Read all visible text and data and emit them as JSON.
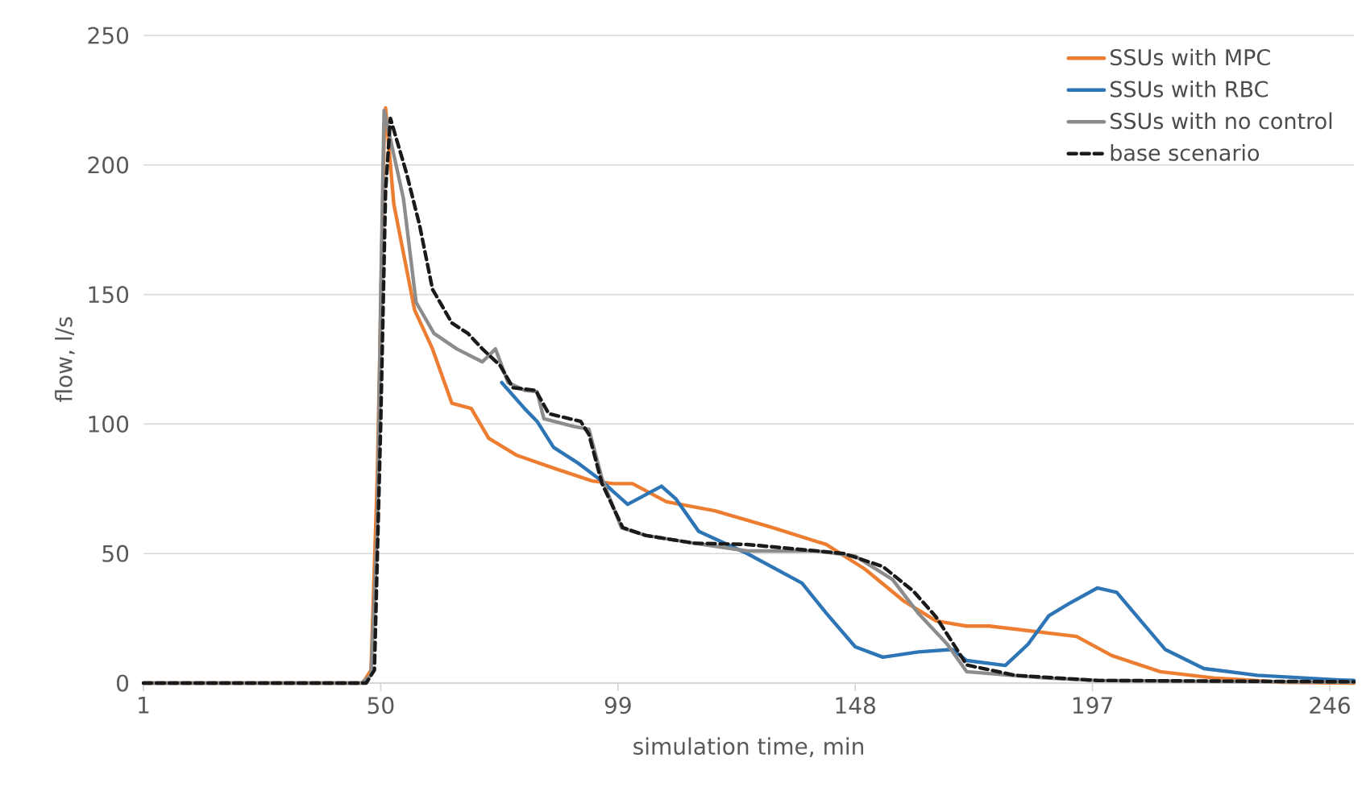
{
  "chart_data": {
    "type": "line",
    "xlabel": "simulation time, min",
    "ylabel": "flow, l/s",
    "xlim": [
      1,
      251
    ],
    "ylim": [
      0,
      250
    ],
    "xticks": [
      1,
      50,
      99,
      148,
      197,
      246
    ],
    "yticks": [
      0,
      50,
      100,
      150,
      200,
      250
    ],
    "grid": "y",
    "legend": "top right",
    "marker": "none",
    "series": [
      {
        "name": "SSUs with MPC",
        "color": "#ed7d31",
        "line_style": "solid",
        "x": [
          1,
          46.3,
          48,
          49.3,
          50.7,
          51,
          52.7,
          57,
          60.7,
          64.7,
          68.7,
          72.3,
          78,
          85.7,
          93.7,
          98,
          102,
          109,
          119,
          131,
          142,
          150,
          158,
          164.7,
          171,
          175.7,
          193.7,
          201,
          211,
          222,
          236,
          251
        ],
        "values": [
          0,
          0,
          5,
          80,
          210,
          222,
          185,
          144,
          129,
          108,
          106,
          94.5,
          88,
          83,
          78,
          77,
          77,
          70,
          66.5,
          60,
          53.5,
          44,
          31.7,
          24,
          22,
          22,
          18,
          10.6,
          4.4,
          2,
          0.3,
          0
        ]
      },
      {
        "name": "SSUs with RBC",
        "color": "#2e75b6",
        "line_style": "solid",
        "x": [
          75,
          79.7,
          82.3,
          85.7,
          91,
          95.7,
          98,
          101,
          108,
          111,
          115.7,
          125.7,
          137,
          142,
          148,
          153.7,
          161,
          168,
          171,
          179,
          183.7,
          188,
          192,
          198,
          202,
          207,
          212,
          220,
          231,
          248,
          251
        ],
        "values": [
          116,
          106,
          101,
          91,
          84.6,
          78,
          74,
          69,
          76,
          71,
          58.5,
          50,
          38.6,
          27,
          14,
          10,
          12,
          13,
          8.7,
          6.8,
          15,
          26,
          30.5,
          36.7,
          35,
          24,
          13,
          5.6,
          3,
          1.2,
          1
        ]
      },
      {
        "name": "SSUs with no control",
        "color": "#8c8c8c",
        "line_style": "solid",
        "x": [
          1,
          46,
          48,
          49.3,
          50,
          50.7,
          54.7,
          57.3,
          61,
          65.7,
          71,
          73.7,
          76.3,
          79.7,
          82.3,
          83.7,
          90,
          93,
          95.7,
          99.7,
          104.7,
          114.7,
          125.7,
          140,
          148,
          155.7,
          161,
          167,
          171,
          187,
          198,
          251
        ],
        "values": [
          0,
          0,
          3,
          60,
          150,
          221,
          187,
          147,
          135,
          129,
          124,
          129,
          116,
          113,
          112.5,
          102,
          99,
          98,
          79,
          60,
          57,
          54,
          51,
          51,
          49,
          40,
          27,
          15,
          4.4,
          2,
          1,
          0.3
        ]
      },
      {
        "name": "base scenario",
        "color": "#1a1a1a",
        "line_style": "dashed",
        "x": [
          1,
          47,
          48.7,
          50,
          51,
          52,
          55.3,
          58,
          60.7,
          64.7,
          68,
          71,
          74.7,
          77.3,
          82,
          84.7,
          91.3,
          93,
          95.7,
          100,
          104.7,
          114.7,
          125.7,
          145.7,
          153.7,
          160,
          164.7,
          169,
          171,
          181,
          198,
          251
        ],
        "values": [
          0,
          0,
          5,
          100,
          190,
          218,
          197,
          177,
          152,
          139,
          135,
          129,
          122.5,
          114,
          113,
          104,
          101,
          96,
          77,
          60,
          57,
          54,
          53.5,
          50,
          45,
          35.5,
          25.5,
          13,
          7,
          3,
          1,
          0.5
        ]
      }
    ]
  }
}
